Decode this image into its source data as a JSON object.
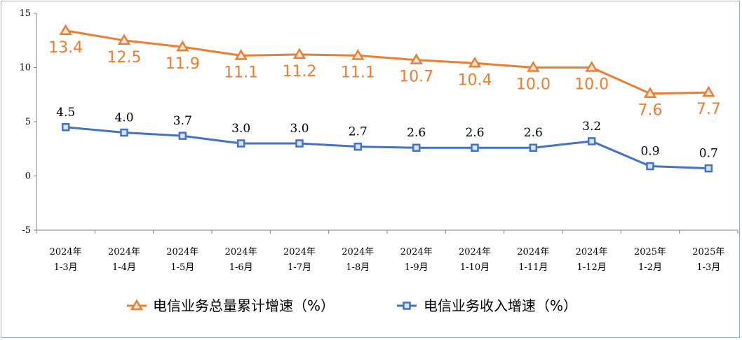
{
  "chart_data": {
    "type": "line",
    "categories": [
      [
        "2024年",
        "1-3月"
      ],
      [
        "2024年",
        "1-4月"
      ],
      [
        "2024年",
        "1-5月"
      ],
      [
        "2024年",
        "1-6月"
      ],
      [
        "2024年",
        "1-7月"
      ],
      [
        "2024年",
        "1-8月"
      ],
      [
        "2024年",
        "1-9月"
      ],
      [
        "2024年",
        "1-10月"
      ],
      [
        "2024年",
        "1-11月"
      ],
      [
        "2024年",
        "1-12月"
      ],
      [
        "2025年",
        "1-2月"
      ],
      [
        "2025年",
        "1-3月"
      ]
    ],
    "series": [
      {
        "name": "电信业务总量累计增速（%）",
        "color": "#ed7d31",
        "marker": "triangle",
        "values": [
          13.4,
          12.5,
          11.9,
          11.1,
          11.2,
          11.1,
          10.7,
          10.4,
          10.0,
          10.0,
          7.6,
          7.7
        ],
        "labels": [
          "13.4",
          "12.5",
          "11.9",
          "11.1",
          "11.2",
          "11.1",
          "10.7",
          "10.4",
          "10.0",
          "10.0",
          "7.6",
          "7.7"
        ]
      },
      {
        "name": "电信业务收入增速（%）",
        "color": "#4472c4",
        "marker": "square",
        "values": [
          4.5,
          4.0,
          3.7,
          3.0,
          3.0,
          2.7,
          2.6,
          2.6,
          2.6,
          3.2,
          0.9,
          0.7
        ],
        "labels": [
          "4.5",
          "4.0",
          "3.7",
          "3.0",
          "3.0",
          "2.7",
          "2.6",
          "2.6",
          "2.6",
          "3.2",
          "0.9",
          "0.7"
        ]
      }
    ],
    "ylim": [
      -5,
      15
    ],
    "yticks": [
      "15",
      "10",
      "5",
      "0",
      "-5"
    ],
    "ytick_values": [
      15,
      10,
      5,
      0,
      -5
    ],
    "legend_position": "bottom",
    "grid": false
  }
}
